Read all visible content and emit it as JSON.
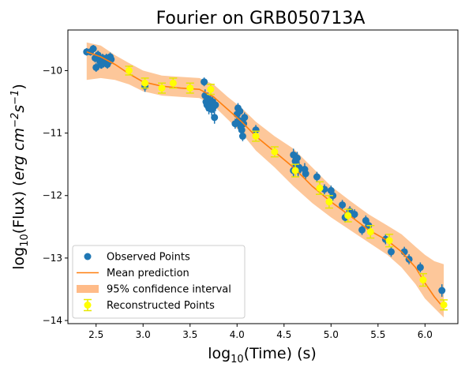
{
  "chart_data": {
    "type": "scatter",
    "title": "Fourier on GRB050713A",
    "xlabel_prefix": "log",
    "xlabel_sub": "10",
    "xlabel_suffix": "(Time) (s)",
    "ylabel_prefix": "log",
    "ylabel_sub": "10",
    "ylabel_mid": "(Flux) (",
    "ylabel_unit": "erg cm",
    "ylabel_exp1": "−2",
    "ylabel_unit2": "s",
    "ylabel_exp2": "−1",
    "ylabel_close": ")",
    "xlim": [
      2.2,
      6.35
    ],
    "ylim": [
      -14.05,
      -9.35
    ],
    "xticks": [
      2.5,
      3.0,
      3.5,
      4.0,
      4.5,
      5.0,
      5.5,
      6.0
    ],
    "xtick_labels": [
      "2.5",
      "3.0",
      "3.5",
      "4.0",
      "4.5",
      "5.0",
      "5.5",
      "6.0"
    ],
    "yticks": [
      -10,
      -11,
      -12,
      -13,
      -14
    ],
    "ytick_labels": [
      "−10",
      "−11",
      "−12",
      "−13",
      "−14"
    ],
    "legend_position": "lower-left",
    "legend": [
      {
        "label": "Observed Points",
        "kind": "marker",
        "color": "#1f77b4"
      },
      {
        "label": "Mean prediction",
        "kind": "line",
        "color": "#ff7f0e"
      },
      {
        "label": "95% confidence interval",
        "kind": "band",
        "color": "#ffbb88"
      },
      {
        "label": "Reconstructed Points",
        "kind": "errmarker",
        "color": "#ffff00"
      }
    ],
    "colors": {
      "observed": "#1f77b4",
      "mean": "#ff7f0e",
      "band": "#fdbd88",
      "reconstructed": "#ffff00",
      "reconstructed_err": "#e6e600"
    },
    "observed": {
      "x": [
        2.4,
        2.44,
        2.47,
        2.49,
        2.52,
        2.54,
        2.56,
        2.57,
        2.6,
        2.61,
        2.62,
        2.64,
        2.65,
        2.66,
        2.5,
        2.55,
        2.58,
        3.02,
        3.65,
        3.66,
        3.67,
        3.68,
        3.69,
        3.7,
        3.71,
        3.72,
        3.73,
        3.74,
        3.75,
        3.76,
        3.77,
        3.98,
        4.0,
        4.01,
        4.02,
        4.03,
        4.04,
        4.05,
        4.06,
        4.07,
        4.08,
        4.2,
        4.6,
        4.62,
        4.64,
        4.66,
        4.6,
        4.62,
        4.65,
        4.72,
        4.73,
        4.85,
        4.93,
        5.0,
        5.02,
        5.12,
        5.15,
        5.2,
        5.25,
        5.33,
        5.37,
        5.4,
        5.58,
        5.64,
        5.78,
        5.83,
        5.95,
        6.18
      ],
      "y": [
        -9.7,
        -9.7,
        -9.65,
        -9.8,
        -9.75,
        -9.85,
        -9.9,
        -9.8,
        -9.85,
        -9.8,
        -9.9,
        -9.85,
        -9.78,
        -9.82,
        -9.95,
        -9.9,
        -9.88,
        -10.25,
        -10.18,
        -10.4,
        -10.5,
        -10.55,
        -10.45,
        -10.6,
        -10.55,
        -10.48,
        -10.62,
        -10.5,
        -10.58,
        -10.75,
        -10.55,
        -10.85,
        -10.7,
        -10.6,
        -10.8,
        -10.65,
        -10.9,
        -10.95,
        -11.05,
        -10.85,
        -10.75,
        -10.95,
        -11.35,
        -11.45,
        -11.4,
        -11.55,
        -11.6,
        -11.55,
        -11.6,
        -11.58,
        -11.65,
        -11.7,
        -11.9,
        -11.92,
        -12.0,
        -12.15,
        -12.35,
        -12.25,
        -12.3,
        -12.55,
        -12.4,
        -12.48,
        -12.7,
        -12.9,
        -12.9,
        -13.02,
        -13.15,
        -13.52
      ],
      "err": [
        0.06,
        0.06,
        0.06,
        0.07,
        0.07,
        0.07,
        0.07,
        0.07,
        0.07,
        0.07,
        0.07,
        0.07,
        0.07,
        0.07,
        0.07,
        0.07,
        0.07,
        0.09,
        0.07,
        0.1,
        0.1,
        0.1,
        0.1,
        0.1,
        0.1,
        0.1,
        0.1,
        0.1,
        0.1,
        0.1,
        0.1,
        0.08,
        0.08,
        0.08,
        0.08,
        0.08,
        0.08,
        0.08,
        0.08,
        0.08,
        0.08,
        0.08,
        0.1,
        0.1,
        0.1,
        0.1,
        0.1,
        0.1,
        0.1,
        0.1,
        0.1,
        0.08,
        0.08,
        0.08,
        0.08,
        0.08,
        0.08,
        0.08,
        0.08,
        0.08,
        0.08,
        0.08,
        0.08,
        0.08,
        0.08,
        0.08,
        0.08,
        0.1
      ]
    },
    "mean_prediction": {
      "x": [
        2.4,
        2.55,
        2.7,
        2.85,
        3.0,
        3.2,
        3.4,
        3.6,
        3.75,
        3.9,
        4.05,
        4.2,
        4.4,
        4.6,
        4.8,
        5.0,
        5.2,
        5.4,
        5.6,
        5.75,
        5.9,
        6.0,
        6.1,
        6.2
      ],
      "y": [
        -9.7,
        -9.78,
        -9.9,
        -10.05,
        -10.18,
        -10.25,
        -10.28,
        -10.3,
        -10.42,
        -10.62,
        -10.82,
        -11.05,
        -11.3,
        -11.55,
        -11.85,
        -12.1,
        -12.32,
        -12.55,
        -12.72,
        -12.9,
        -13.15,
        -13.4,
        -13.62,
        -13.8
      ]
    },
    "confidence_band": {
      "x": [
        2.4,
        2.55,
        2.7,
        2.85,
        3.0,
        3.2,
        3.4,
        3.6,
        3.75,
        3.9,
        4.05,
        4.2,
        4.4,
        4.6,
        4.8,
        5.0,
        5.2,
        5.4,
        5.6,
        5.75,
        5.9,
        6.0,
        6.1,
        6.2
      ],
      "upper": [
        -9.55,
        -9.6,
        -9.75,
        -9.88,
        -10.0,
        -10.08,
        -10.1,
        -10.12,
        -10.22,
        -10.42,
        -10.6,
        -10.82,
        -11.05,
        -11.25,
        -11.55,
        -11.85,
        -12.08,
        -12.3,
        -12.48,
        -12.62,
        -12.82,
        -12.95,
        -13.05,
        -13.1
      ],
      "lower": [
        -10.15,
        -10.12,
        -10.15,
        -10.22,
        -10.33,
        -10.4,
        -10.42,
        -10.44,
        -10.56,
        -10.78,
        -11.0,
        -11.28,
        -11.55,
        -11.85,
        -12.12,
        -12.35,
        -12.55,
        -12.75,
        -12.95,
        -13.15,
        -13.42,
        -13.65,
        -13.8,
        -13.95
      ]
    },
    "reconstructed": {
      "x": [
        2.85,
        3.02,
        3.2,
        3.32,
        3.5,
        3.72,
        4.2,
        4.4,
        4.62,
        4.88,
        4.98,
        5.18,
        5.42,
        5.62,
        5.98,
        6.2
      ],
      "y": [
        -10.0,
        -10.2,
        -10.28,
        -10.2,
        -10.28,
        -10.3,
        -11.05,
        -11.3,
        -11.6,
        -11.88,
        -12.1,
        -12.32,
        -12.58,
        -12.72,
        -13.35,
        -13.75
      ],
      "err": [
        0.07,
        0.08,
        0.08,
        0.08,
        0.08,
        0.08,
        0.08,
        0.08,
        0.1,
        0.1,
        0.1,
        0.1,
        0.1,
        0.1,
        0.1,
        0.08
      ]
    }
  }
}
